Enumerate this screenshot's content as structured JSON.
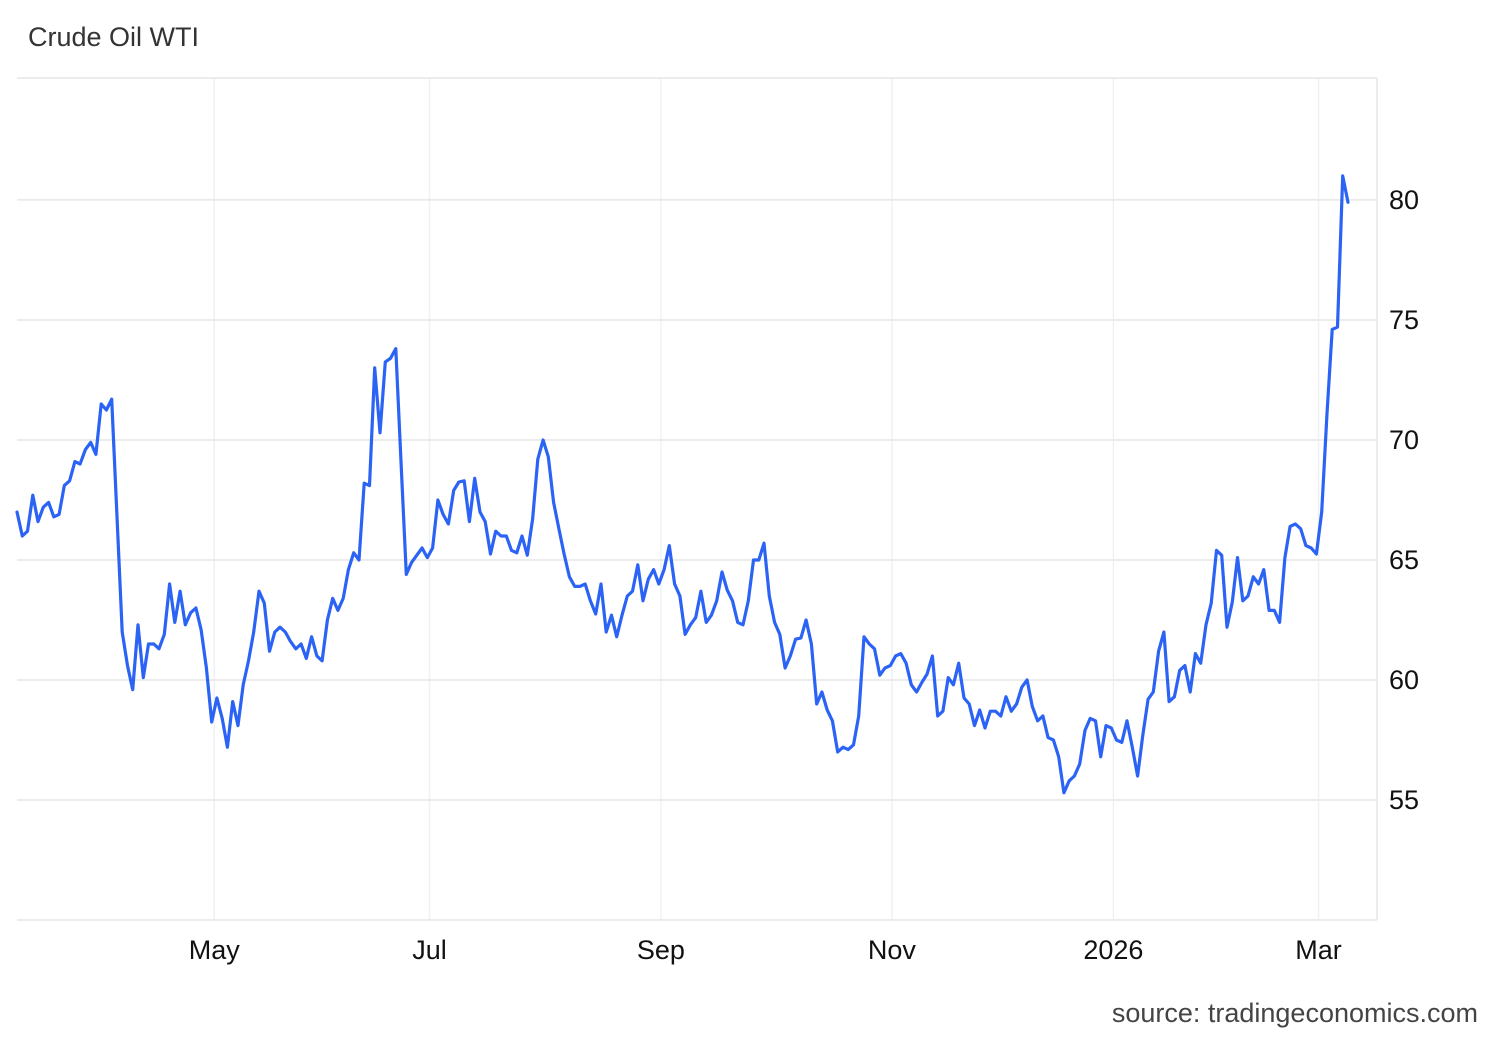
{
  "title": "Crude Oil WTI",
  "source": "source: tradingeconomics.com",
  "chart_data": {
    "type": "line",
    "title": "Crude Oil WTI",
    "xlabel": "",
    "ylabel": "",
    "ylim": [
      50,
      85
    ],
    "grid": true,
    "line_color": "#2b63f5",
    "y_ticks": [
      55,
      60,
      65,
      70,
      75,
      80
    ],
    "y_axis_side": "right",
    "x_ticks": [
      {
        "label": "May",
        "index": 37.5
      },
      {
        "label": "Jul",
        "index": 78.4
      },
      {
        "label": "Sep",
        "index": 122.4
      },
      {
        "label": "Nov",
        "index": 166.3
      },
      {
        "label": "2026",
        "index": 208.4
      },
      {
        "label": "Mar",
        "index": 247.4
      }
    ],
    "values": [
      67.0,
      66.0,
      66.2,
      67.7,
      66.6,
      67.2,
      67.4,
      66.8,
      66.9,
      68.1,
      68.3,
      69.1,
      69.0,
      69.6,
      69.9,
      69.4,
      71.5,
      71.25,
      71.7,
      66.8,
      62.0,
      60.6,
      59.6,
      62.3,
      60.1,
      61.5,
      61.5,
      61.3,
      61.9,
      64.0,
      62.4,
      63.7,
      62.3,
      62.8,
      63.0,
      62.1,
      60.5,
      58.25,
      59.25,
      58.4,
      57.2,
      59.1,
      58.1,
      59.8,
      60.8,
      62.0,
      63.7,
      63.2,
      61.2,
      62.0,
      62.2,
      62.0,
      61.6,
      61.3,
      61.5,
      60.9,
      61.8,
      61.0,
      60.8,
      62.5,
      63.4,
      62.9,
      63.4,
      64.6,
      65.3,
      65.0,
      68.2,
      68.1,
      73.0,
      70.3,
      73.25,
      73.4,
      73.8,
      69.1,
      64.4,
      64.9,
      65.2,
      65.5,
      65.1,
      65.5,
      67.5,
      66.9,
      66.5,
      67.9,
      68.25,
      68.3,
      66.6,
      68.4,
      67.0,
      66.6,
      65.25,
      66.2,
      66.0,
      66.0,
      65.4,
      65.3,
      66.0,
      65.2,
      66.7,
      69.2,
      70.0,
      69.3,
      67.4,
      66.3,
      65.25,
      64.3,
      63.9,
      63.9,
      64.0,
      63.3,
      62.75,
      64.0,
      62.0,
      62.7,
      61.8,
      62.7,
      63.5,
      63.7,
      64.8,
      63.3,
      64.2,
      64.6,
      64.0,
      64.6,
      65.6,
      64.0,
      63.5,
      61.9,
      62.3,
      62.6,
      63.7,
      62.4,
      62.7,
      63.3,
      64.5,
      63.75,
      63.3,
      62.4,
      62.3,
      63.3,
      65.0,
      65.0,
      65.7,
      63.5,
      62.4,
      61.9,
      60.5,
      61.0,
      61.7,
      61.75,
      62.5,
      61.5,
      59.0,
      59.5,
      58.75,
      58.3,
      57.0,
      57.2,
      57.1,
      57.3,
      58.5,
      61.8,
      61.5,
      61.3,
      60.2,
      60.5,
      60.6,
      61.0,
      61.1,
      60.7,
      59.8,
      59.5,
      59.9,
      60.25,
      61.0,
      58.5,
      58.7,
      60.1,
      59.8,
      60.7,
      59.25,
      59.0,
      58.1,
      58.75,
      58.0,
      58.7,
      58.7,
      58.5,
      59.3,
      58.7,
      59.0,
      59.7,
      60.0,
      58.9,
      58.3,
      58.5,
      57.6,
      57.5,
      56.8,
      55.3,
      55.8,
      56.0,
      56.5,
      57.9,
      58.4,
      58.3,
      56.8,
      58.1,
      58.0,
      57.5,
      57.4,
      58.3,
      57.2,
      56.0,
      57.7,
      59.2,
      59.5,
      61.2,
      62.0,
      59.1,
      59.3,
      60.4,
      60.6,
      59.5,
      61.1,
      60.7,
      62.3,
      63.2,
      65.4,
      65.2,
      62.2,
      63.25,
      65.1,
      63.3,
      63.5,
      64.3,
      64.0,
      64.6,
      62.9,
      62.9,
      62.4,
      65.1,
      66.4,
      66.5,
      66.3,
      65.6,
      65.5,
      65.25,
      67.0,
      71.1,
      74.6,
      74.7,
      81.0,
      79.9
    ]
  }
}
